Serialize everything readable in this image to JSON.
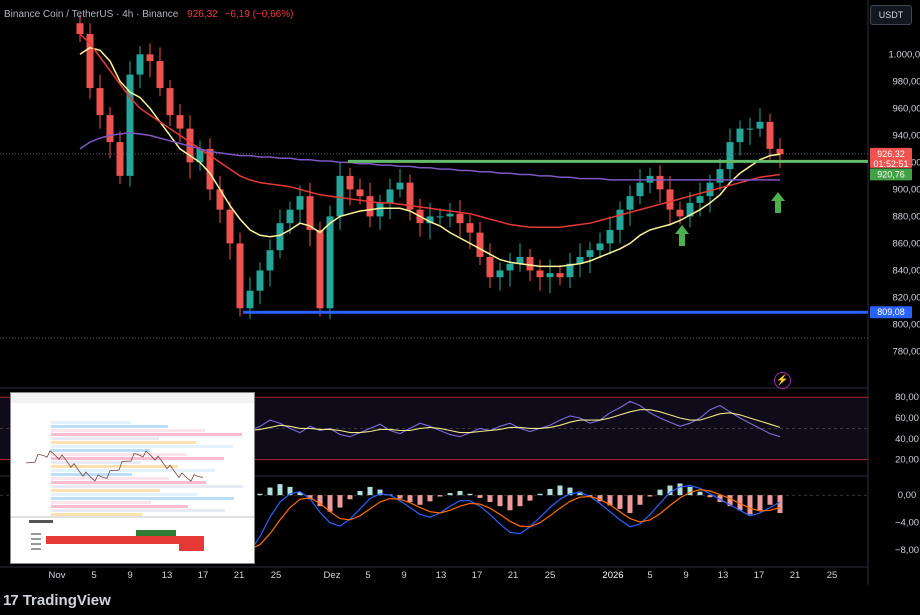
{
  "header": {
    "symbol": "Binance Coin / TetherUS · 4h · Binance",
    "last": "926,32",
    "change": "−6,19 (−0,66%)"
  },
  "currency_button": "USDT",
  "branding": "TradingView",
  "colors": {
    "bg": "#000000",
    "up": "#26a69a",
    "down": "#ef5350",
    "ma_fast": "#fff59d",
    "ma_mid": "#e53935",
    "ma_slow": "#7e57c2",
    "resistance": "#66bb6a",
    "support": "#2962ff",
    "arrow": "#4caf50",
    "rsi": "#7e6bd8",
    "rsi_ma": "#f0e68c",
    "macd": "#2962ff",
    "signal": "#ff6d00"
  },
  "chart_data": [
    {
      "type": "candlestick",
      "price_axis": [
        "1.000,00",
        "980,00",
        "960,00",
        "940,00",
        "920,00",
        "900,00",
        "880,00",
        "860,00",
        "840,00",
        "820,00",
        "800,00",
        "780,00"
      ],
      "ylim": [
        770,
        1018
      ],
      "x_ticks": [
        "Nov",
        "5",
        "9",
        "13",
        "17",
        "21",
        "25",
        "Dez",
        "5",
        "9",
        "13",
        "17",
        "21",
        "25",
        "2026",
        "5",
        "9",
        "13",
        "17",
        "21",
        "25"
      ],
      "price_labels": {
        "last": "926,32",
        "countdown": "01:52:51",
        "resistance": "920,76",
        "support": "809,08"
      },
      "levels": {
        "resistance": 920.76,
        "support": 809.08,
        "dotted_high": 926.32,
        "dotted_low": 790
      },
      "series": [
        {
          "name": "close",
          "values": [
            1015,
            975,
            955,
            935,
            910,
            985,
            1000,
            995,
            975,
            955,
            945,
            920,
            930,
            900,
            885,
            860,
            812,
            825,
            840,
            855,
            875,
            885,
            895,
            870,
            812,
            880,
            910,
            900,
            895,
            880,
            890,
            900,
            905,
            885,
            875,
            880,
            880,
            882,
            875,
            868,
            850,
            835,
            840,
            845,
            850,
            840,
            835,
            838,
            835,
            845,
            850,
            855,
            860,
            870,
            885,
            895,
            905,
            910,
            900,
            885,
            880,
            890,
            895,
            905,
            915,
            935,
            945,
            945,
            950,
            930,
            926
          ]
        },
        {
          "name": "ma_fast",
          "values": [
            1000,
            1005,
            1003,
            995,
            980,
            972,
            968,
            960,
            950,
            940,
            930,
            925,
            920,
            912,
            900,
            888,
            878,
            870,
            866,
            865,
            866,
            870,
            875,
            873,
            868,
            875,
            880,
            882,
            884,
            885,
            886,
            886,
            886,
            884,
            880,
            876,
            873,
            868,
            864,
            860,
            856,
            852,
            848,
            846,
            845,
            844,
            843,
            843,
            843,
            844,
            845,
            847,
            850,
            853,
            856,
            860,
            866,
            870,
            872,
            874,
            877,
            881,
            885,
            890,
            896,
            905,
            912,
            917,
            922,
            925,
            926
          ]
        },
        {
          "name": "ma_mid",
          "values": [
            1015,
            1008,
            998,
            988,
            978,
            968,
            960,
            955,
            950,
            945,
            940,
            935,
            930,
            925,
            920,
            915,
            910,
            907,
            905,
            904,
            903,
            902,
            900,
            898,
            896,
            895,
            894,
            893,
            892,
            891,
            890,
            890,
            889,
            888,
            887,
            886,
            885,
            884,
            883,
            882,
            880,
            878,
            876,
            874,
            873,
            872,
            872,
            872,
            872,
            873,
            874,
            875,
            877,
            879,
            881,
            883,
            885,
            887,
            889,
            891,
            893,
            895,
            897,
            899,
            901,
            903,
            905,
            907,
            909,
            910,
            911
          ]
        },
        {
          "name": "ma_slow",
          "values": [
            930,
            935,
            938,
            940,
            941,
            942,
            941,
            940,
            938,
            936,
            934,
            932,
            930,
            928,
            927,
            926,
            925,
            925,
            924,
            924,
            923,
            923,
            922,
            922,
            921,
            921,
            920,
            920,
            919,
            919,
            918,
            918,
            917,
            917,
            916,
            916,
            915,
            915,
            914,
            914,
            913,
            913,
            912,
            912,
            911,
            911,
            910,
            910,
            909,
            909,
            908,
            908,
            908,
            907,
            907,
            907,
            907,
            907,
            907,
            907,
            907,
            907,
            907,
            907,
            907,
            907,
            907,
            907,
            907,
            907,
            907
          ]
        }
      ]
    },
    {
      "type": "line",
      "name": "RSI",
      "axis": [
        "80,00",
        "60,00",
        "40,00",
        "20,00"
      ],
      "ylim": [
        10,
        85
      ],
      "levels": [
        80,
        20
      ],
      "series": [
        {
          "name": "rsi",
          "values": [
            55,
            48,
            52,
            46,
            50,
            43,
            45,
            40,
            44,
            36,
            40,
            45,
            52,
            50,
            55,
            48,
            42,
            48,
            52,
            58,
            55,
            50,
            46,
            52,
            48,
            50,
            44,
            42,
            46,
            50,
            54,
            48,
            45,
            50,
            55,
            52,
            48,
            44,
            42,
            46,
            50,
            48,
            52,
            55,
            50,
            47,
            50,
            53,
            58,
            62,
            60,
            55,
            58,
            65,
            70,
            76,
            72,
            65,
            60,
            56,
            52,
            55,
            60,
            68,
            72,
            66,
            60,
            55,
            50,
            45,
            42
          ]
        },
        {
          "name": "rsi_ma",
          "values": [
            48,
            48,
            48,
            47,
            47,
            46,
            46,
            45,
            45,
            44,
            44,
            45,
            47,
            49,
            50,
            50,
            48,
            48,
            49,
            51,
            53,
            52,
            50,
            50,
            49,
            49,
            48,
            46,
            46,
            47,
            49,
            49,
            48,
            48,
            50,
            51,
            50,
            48,
            46,
            46,
            47,
            48,
            49,
            51,
            51,
            50,
            50,
            51,
            53,
            56,
            58,
            58,
            58,
            60,
            63,
            66,
            68,
            68,
            66,
            63,
            60,
            58,
            58,
            61,
            64,
            65,
            63,
            60,
            57,
            54,
            51
          ]
        }
      ]
    },
    {
      "type": "bar",
      "name": "MACD",
      "axis": [
        "0,00",
        "−4,00",
        "−8,00"
      ],
      "ylim": [
        -10,
        2.2
      ],
      "series": [
        {
          "name": "histogram",
          "values": [
            1.2,
            0.5,
            -0.6,
            -1.8,
            -2.6,
            -3.0,
            -2.2,
            -0.8,
            0.6,
            1.4,
            1.0,
            0.2,
            -0.8,
            -1.8,
            -2.6,
            -3.2,
            -2.4,
            -1.2,
            0.2,
            1.1,
            1.6,
            1.2,
            0.4,
            -0.6,
            -1.6,
            -2.4,
            -1.8,
            -0.6,
            0.6,
            1.2,
            0.8,
            0.1,
            -0.5,
            -1.0,
            -1.4,
            -0.9,
            -0.2,
            0.3,
            0.6,
            0.2,
            -0.4,
            -1.0,
            -1.6,
            -2.2,
            -1.6,
            -0.8,
            0.2,
            0.9,
            1.4,
            1.1,
            0.5,
            -0.2,
            -0.9,
            -1.5,
            -2.0,
            -2.6,
            -1.4,
            -0.2,
            0.8,
            1.4,
            1.7,
            1.2,
            0.5,
            -0.3,
            -1.0,
            -1.6,
            -2.2,
            -2.8,
            -2.2,
            -1.4,
            -2.6
          ]
        },
        {
          "name": "macd",
          "values": [
            1.5,
            0.8,
            -1.0,
            -3.5,
            -6.5,
            -9.5,
            -9.8,
            -7.5,
            -4.5,
            -1.5,
            -0.2,
            -0.8,
            -2.0,
            -3.5,
            -5.5,
            -7.8,
            -9.0,
            -8.2,
            -6.0,
            -3.2,
            -1.0,
            0.2,
            0.5,
            -0.5,
            -2.5,
            -4.0,
            -4.5,
            -3.5,
            -2.0,
            -0.5,
            0.2,
            0.0,
            -0.8,
            -1.8,
            -2.8,
            -3.2,
            -2.6,
            -1.6,
            -0.8,
            -0.8,
            -1.6,
            -2.8,
            -4.2,
            -5.4,
            -5.6,
            -4.6,
            -3.2,
            -1.8,
            -0.6,
            0.2,
            0.4,
            -0.2,
            -1.2,
            -2.4,
            -3.6,
            -4.6,
            -4.2,
            -2.8,
            -1.2,
            0.4,
            1.2,
            1.4,
            1.0,
            0.2,
            -0.6,
            -1.4,
            -2.2,
            -3.0,
            -2.6,
            -1.8,
            -1.0
          ]
        },
        {
          "name": "signal",
          "values": [
            1.2,
            1.0,
            0.4,
            -1.0,
            -3.0,
            -5.5,
            -7.5,
            -8.0,
            -7.0,
            -5.0,
            -3.0,
            -1.8,
            -1.8,
            -2.5,
            -3.8,
            -5.5,
            -7.0,
            -7.8,
            -7.2,
            -5.6,
            -3.6,
            -1.8,
            -0.6,
            -0.4,
            -1.2,
            -2.4,
            -3.4,
            -3.6,
            -3.0,
            -2.0,
            -1.0,
            -0.5,
            -0.6,
            -1.1,
            -1.8,
            -2.4,
            -2.6,
            -2.2,
            -1.6,
            -1.2,
            -1.3,
            -1.9,
            -2.8,
            -3.8,
            -4.5,
            -4.6,
            -4.0,
            -3.0,
            -1.9,
            -0.9,
            -0.3,
            -0.2,
            -0.6,
            -1.4,
            -2.4,
            -3.4,
            -3.9,
            -3.6,
            -2.7,
            -1.5,
            -0.4,
            0.4,
            0.8,
            0.6,
            0.1,
            -0.5,
            -1.2,
            -1.9,
            -2.3,
            -2.2,
            -1.8
          ]
        }
      ]
    }
  ]
}
